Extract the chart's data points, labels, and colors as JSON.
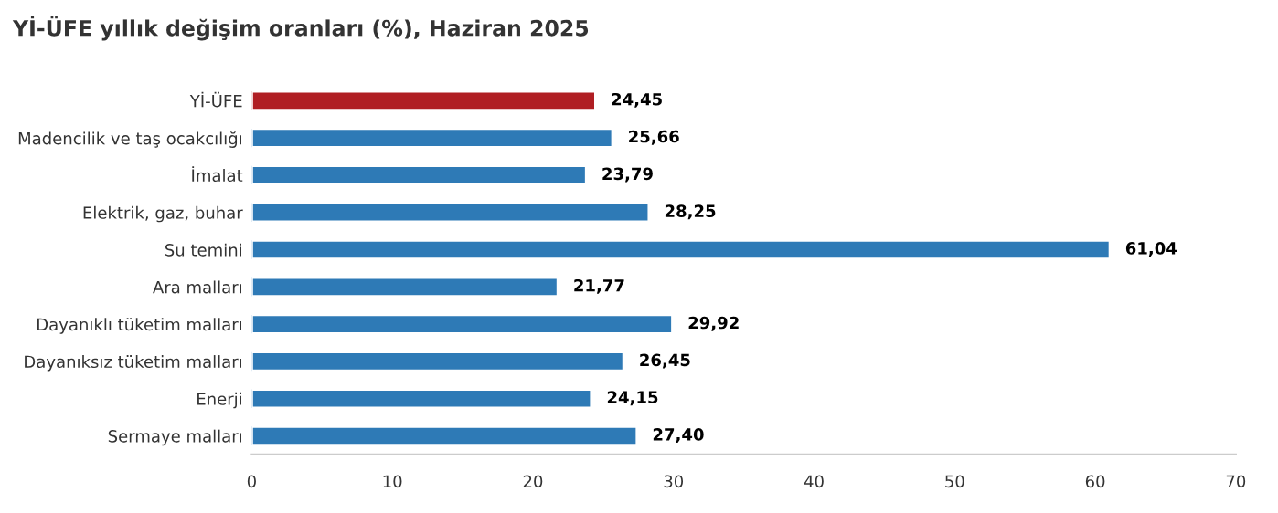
{
  "chart_data": {
    "type": "bar",
    "orientation": "horizontal",
    "title": "Yİ-ÜFE yıllık değişim oranları (%), Haziran 2025",
    "categories": [
      "Yİ-ÜFE",
      "Madencilik ve taş ocakcılığı",
      "İmalat",
      "Elektrik, gaz, buhar",
      "Su temini",
      "Ara malları",
      "Dayanıklı tüketim malları",
      "Dayanıksız tüketim malları",
      "Enerji",
      "Sermaye malları"
    ],
    "values": [
      24.45,
      25.66,
      23.79,
      28.25,
      61.04,
      21.77,
      29.92,
      26.45,
      24.15,
      27.4
    ],
    "value_labels": [
      "24,45",
      "25,66",
      "23,79",
      "28,25",
      "61,04",
      "21,77",
      "29,92",
      "26,45",
      "24,15",
      "27,40"
    ],
    "colors": [
      "#b01e23",
      "#2e7ab6",
      "#2e7ab6",
      "#2e7ab6",
      "#2e7ab6",
      "#2e7ab6",
      "#2e7ab6",
      "#2e7ab6",
      "#2e7ab6",
      "#2e7ab6"
    ],
    "xlim": [
      0,
      70
    ],
    "xticks": [
      0,
      10,
      20,
      30,
      40,
      50,
      60,
      70
    ],
    "grid": false,
    "legend": false
  }
}
